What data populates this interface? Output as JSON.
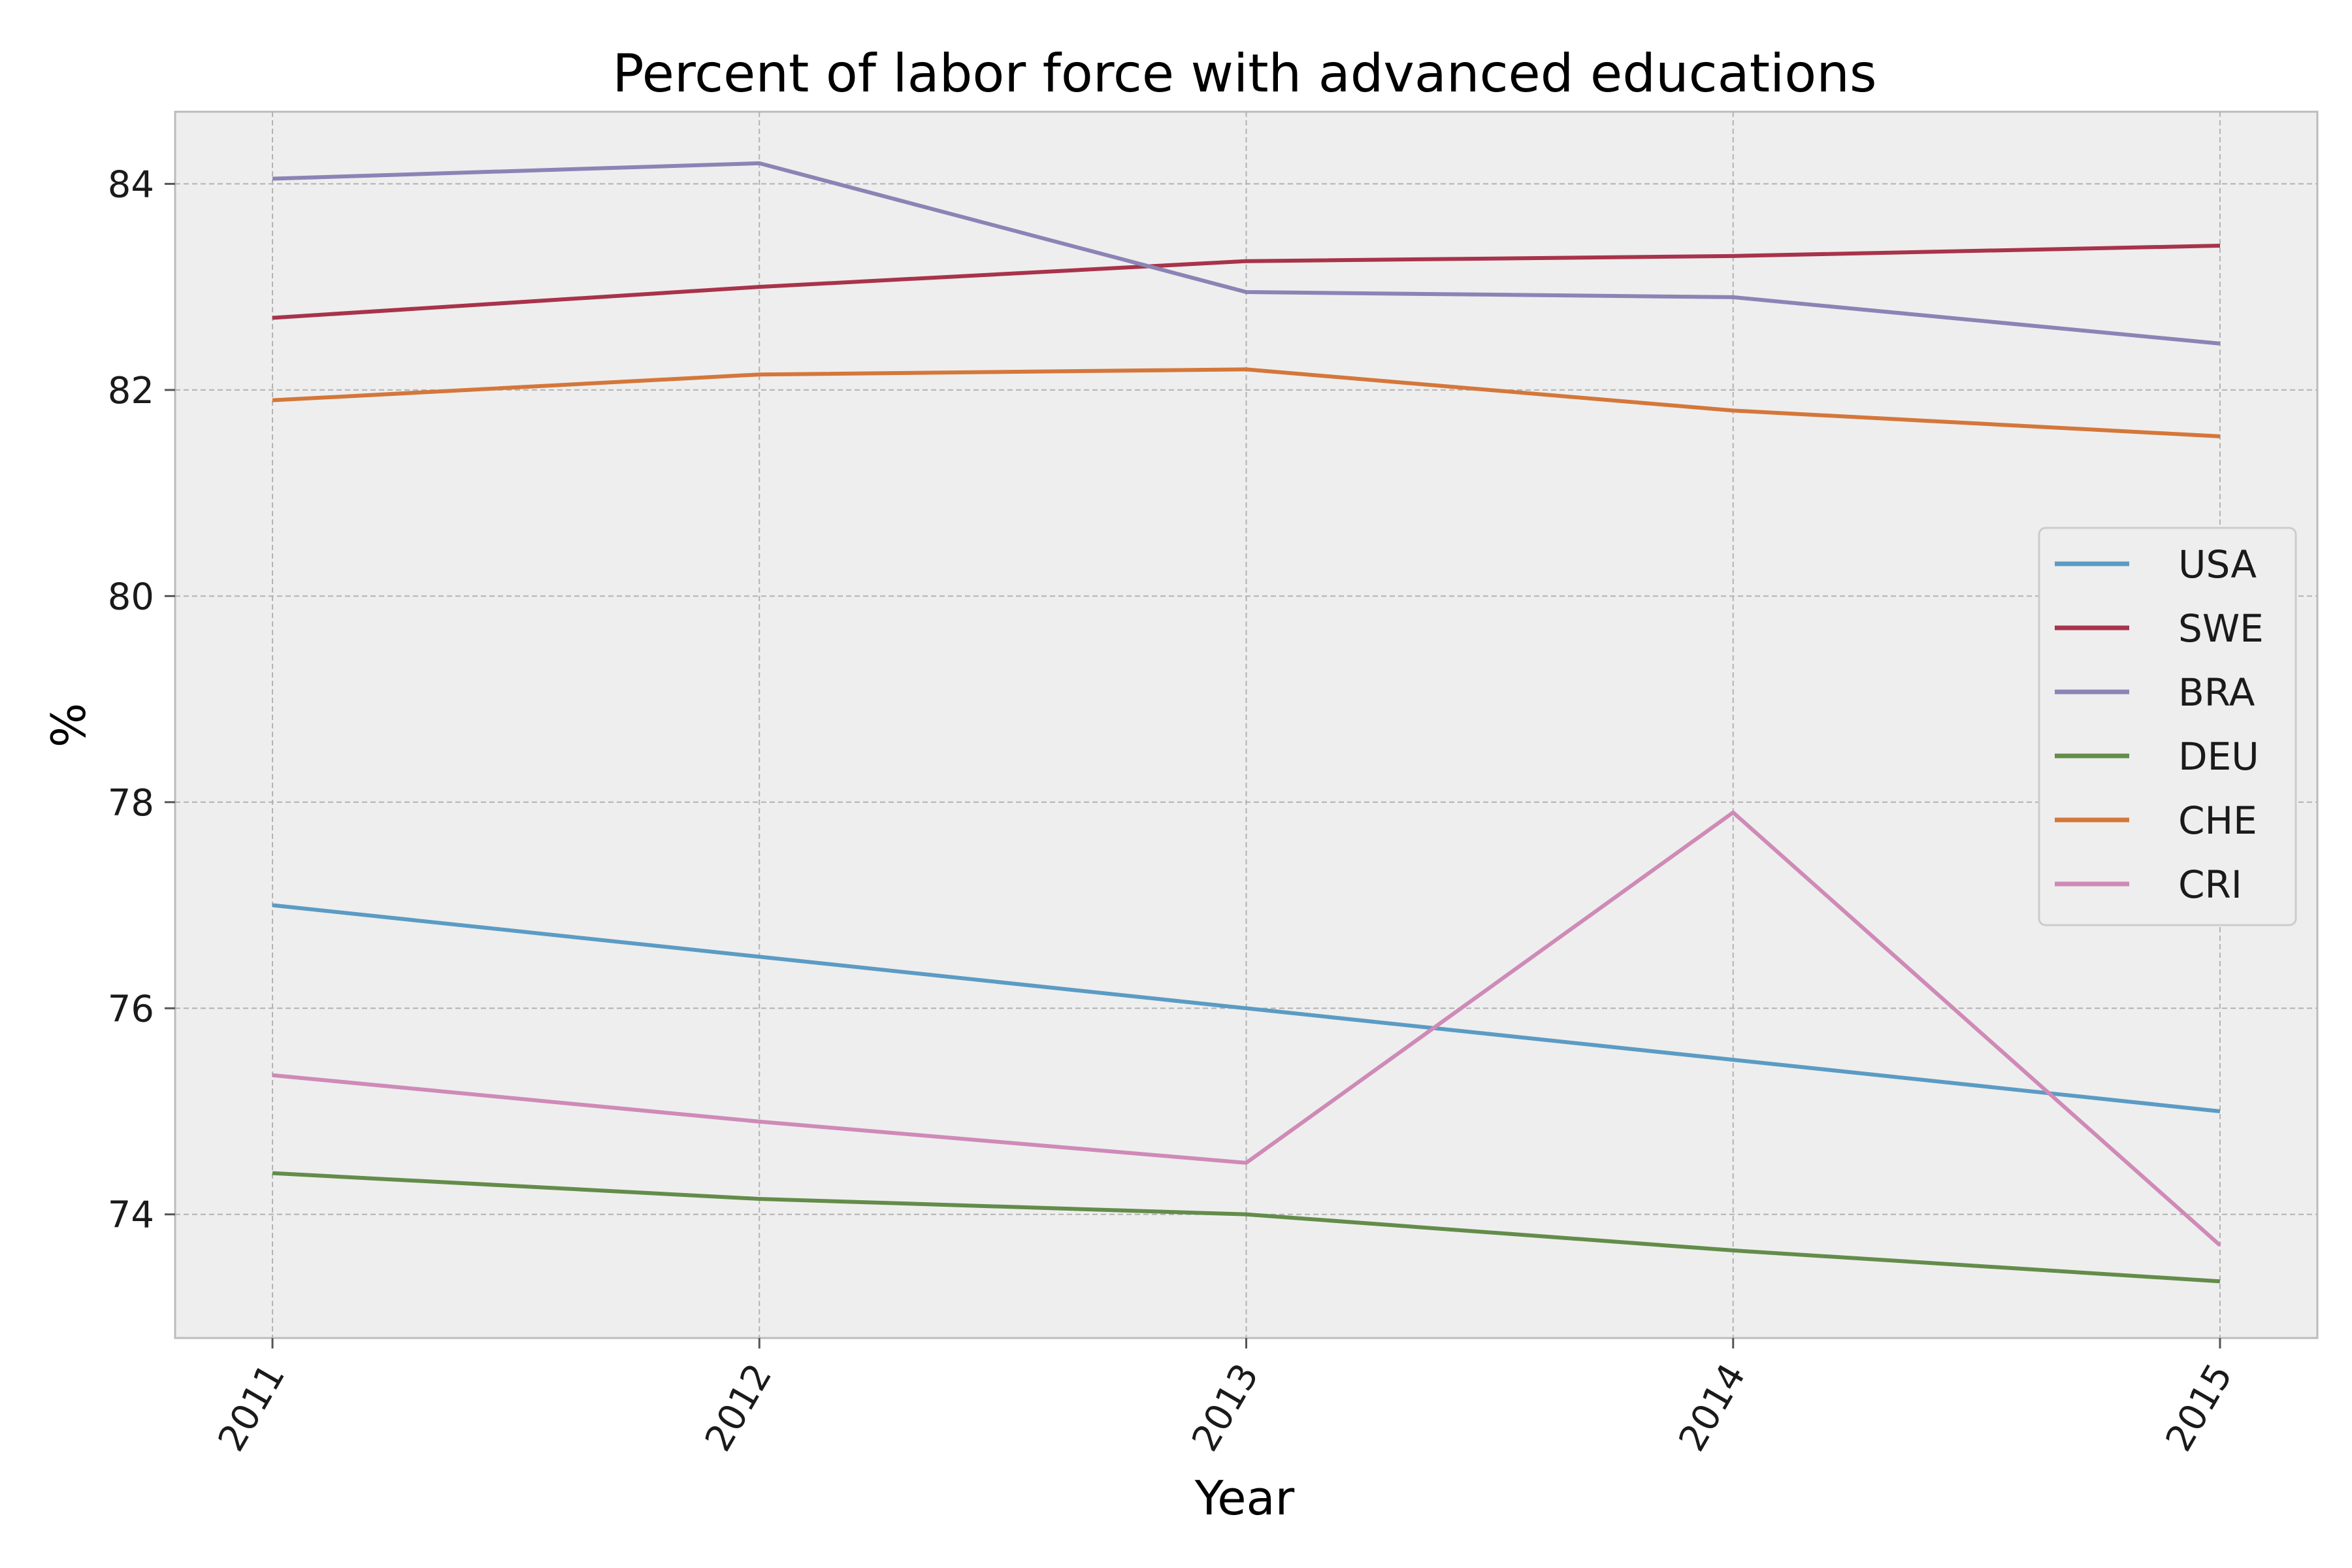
{
  "chart_data": {
    "type": "line",
    "title": "Percent of labor force with advanced educations",
    "xlabel": "Year",
    "ylabel": "%",
    "x": [
      2011,
      2012,
      2013,
      2014,
      2015
    ],
    "x_tick_labels": [
      "2011",
      "2012",
      "2013",
      "2014",
      "2015"
    ],
    "y_ticks": [
      74,
      76,
      78,
      80,
      82,
      84
    ],
    "y_tick_labels": [
      "74",
      "76",
      "78",
      "80",
      "82",
      "84"
    ],
    "xlim": [
      2010.8,
      2015.2
    ],
    "ylim": [
      72.8,
      84.7
    ],
    "grid": true,
    "legend_position": "center-right",
    "series": [
      {
        "name": "USA",
        "color": "#5b9bc4",
        "values": [
          77.0,
          76.5,
          76.0,
          75.5,
          75.0
        ]
      },
      {
        "name": "SWE",
        "color": "#a8334b",
        "values": [
          82.7,
          83.0,
          83.25,
          83.3,
          83.4
        ]
      },
      {
        "name": "BRA",
        "color": "#8c83b5",
        "values": [
          84.05,
          84.2,
          82.95,
          82.9,
          82.45
        ]
      },
      {
        "name": "DEU",
        "color": "#638c4a",
        "values": [
          74.4,
          74.15,
          74.0,
          73.65,
          73.35
        ]
      },
      {
        "name": "CHE",
        "color": "#d4773a",
        "values": [
          81.9,
          82.15,
          82.2,
          81.8,
          81.55
        ]
      },
      {
        "name": "CRI",
        "color": "#cf8ab7",
        "values": [
          75.35,
          74.9,
          74.5,
          77.9,
          73.7
        ]
      }
    ]
  }
}
